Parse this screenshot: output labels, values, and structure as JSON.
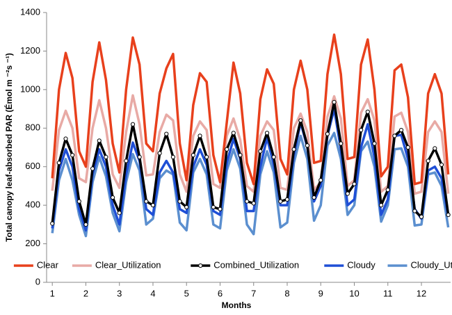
{
  "chart_data": {
    "type": "line",
    "x_label": "Months",
    "y_label": "Total canopy leaf-absorbed PAR (Émol m ⁻²s ⁻¹)",
    "x": [
      1,
      1.2,
      1.4,
      1.6,
      1.8,
      2,
      2.2,
      2.4,
      2.6,
      2.8,
      3,
      3.2,
      3.4,
      3.6,
      3.8,
      4,
      4.2,
      4.4,
      4.6,
      4.8,
      5,
      5.2,
      5.4,
      5.6,
      5.8,
      6,
      6.2,
      6.4,
      6.6,
      6.8,
      7,
      7.2,
      7.4,
      7.6,
      7.8,
      8,
      8.2,
      8.4,
      8.6,
      8.8,
      9,
      9.2,
      9.4,
      9.6,
      9.8,
      10,
      10.2,
      10.4,
      10.6,
      10.8,
      11,
      11.2,
      11.4,
      11.6,
      11.8,
      12,
      12.2,
      12.4,
      12.6,
      12.8
    ],
    "xlim": [
      0.83,
      12.87
    ],
    "xticks": [
      1,
      2,
      3,
      4,
      5,
      6,
      7,
      8,
      9,
      10,
      11,
      12
    ],
    "ylim": [
      0,
      1400
    ],
    "yticks": [
      0,
      200,
      400,
      600,
      800,
      1000,
      1200,
      1400
    ],
    "legend": "bottom",
    "series": [
      {
        "name": "Clear_Utilization",
        "color": "#e8aaa5",
        "values": [
          475,
          790,
          890,
          800,
          540,
          520,
          800,
          945,
          800,
          560,
          490,
          780,
          970,
          820,
          555,
          560,
          780,
          870,
          840,
          560,
          470,
          760,
          835,
          790,
          510,
          490,
          760,
          850,
          740,
          500,
          470,
          760,
          835,
          790,
          490,
          480,
          800,
          875,
          780,
          480,
          520,
          860,
          965,
          850,
          500,
          530,
          880,
          950,
          840,
          470,
          500,
          860,
          880,
          780,
          460,
          470,
          780,
          835,
          780,
          460
        ]
      },
      {
        "name": "Clear",
        "color": "#e8401c",
        "values": [
          540,
          1000,
          1190,
          1060,
          680,
          600,
          1040,
          1245,
          1050,
          720,
          570,
          1000,
          1270,
          1130,
          720,
          680,
          980,
          1110,
          1185,
          720,
          530,
          920,
          1085,
          1040,
          660,
          520,
          830,
          1140,
          980,
          620,
          510,
          950,
          1105,
          1030,
          640,
          560,
          1000,
          1150,
          1000,
          620,
          630,
          1080,
          1285,
          1080,
          640,
          650,
          1130,
          1260,
          1000,
          550,
          600,
          1100,
          1130,
          960,
          510,
          520,
          980,
          1080,
          980,
          560
        ]
      },
      {
        "name": "Cloudy_Utilization",
        "color": "#5b8fcf",
        "values": [
          255,
          530,
          640,
          530,
          350,
          240,
          520,
          650,
          550,
          360,
          265,
          520,
          665,
          580,
          300,
          330,
          540,
          580,
          560,
          310,
          270,
          570,
          640,
          560,
          300,
          280,
          580,
          690,
          590,
          300,
          250,
          560,
          680,
          570,
          285,
          310,
          620,
          760,
          640,
          320,
          400,
          710,
          775,
          640,
          350,
          400,
          680,
          730,
          600,
          315,
          400,
          690,
          695,
          600,
          295,
          300,
          560,
          570,
          500,
          285
        ]
      },
      {
        "name": "Cloudy",
        "color": "#1f4fd6",
        "values": [
          280,
          580,
          690,
          600,
          380,
          270,
          560,
          690,
          600,
          400,
          300,
          560,
          725,
          630,
          380,
          350,
          570,
          630,
          570,
          380,
          360,
          600,
          690,
          610,
          370,
          350,
          620,
          745,
          640,
          370,
          370,
          600,
          750,
          610,
          400,
          400,
          660,
          830,
          700,
          420,
          500,
          760,
          900,
          690,
          400,
          430,
          700,
          820,
          650,
          350,
          430,
          760,
          765,
          640,
          380,
          330,
          580,
          600,
          540,
          340
        ]
      },
      {
        "name": "Combined_Utilization",
        "color": "#000000",
        "marker": "circle",
        "values": [
          305,
          620,
          745,
          660,
          420,
          300,
          590,
          735,
          650,
          440,
          360,
          630,
          820,
          650,
          420,
          400,
          670,
          770,
          650,
          420,
          390,
          660,
          760,
          650,
          390,
          380,
          690,
          775,
          660,
          420,
          410,
          680,
          775,
          650,
          420,
          430,
          690,
          840,
          710,
          440,
          530,
          770,
          935,
          720,
          460,
          510,
          790,
          885,
          720,
          400,
          480,
          760,
          790,
          700,
          370,
          340,
          630,
          695,
          610,
          350
        ]
      }
    ],
    "legend_order": [
      1,
      0,
      4,
      3,
      2
    ]
  }
}
